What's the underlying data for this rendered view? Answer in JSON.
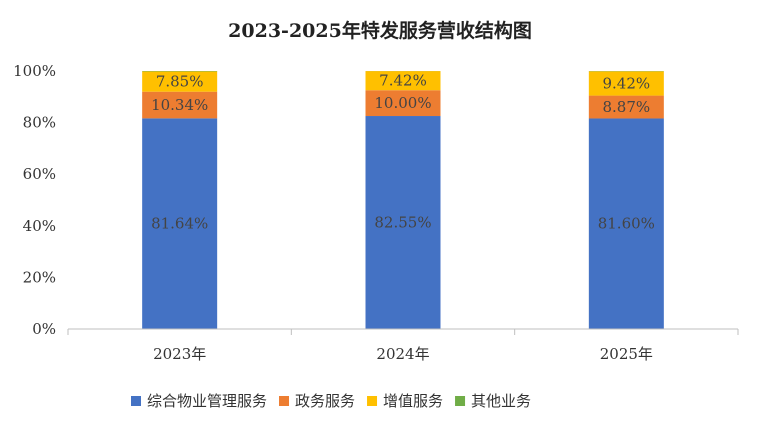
{
  "chart_data": {
    "type": "bar",
    "stacked": true,
    "title": "2023-2025年特发服务营收结构图",
    "categories": [
      "2023年",
      "2024年",
      "2025年"
    ],
    "series": [
      {
        "name": "综合物业管理服务",
        "color": "#4472C4",
        "values": [
          81.64,
          82.55,
          81.6
        ],
        "labels": [
          "81.64%",
          "82.55%",
          "81.60%"
        ]
      },
      {
        "name": "政务服务",
        "color": "#ED7D31",
        "values": [
          10.34,
          10.0,
          8.87
        ],
        "labels": [
          "10.34%",
          "10.00%",
          "8.87%"
        ]
      },
      {
        "name": "增值服务",
        "color": "#FFC000",
        "values": [
          7.85,
          7.42,
          9.42
        ],
        "labels": [
          "7.85%",
          "7.42%",
          "9.42%"
        ]
      },
      {
        "name": "其他业务",
        "color": "#70AD47",
        "values": [
          0.17,
          0.03,
          0.11
        ],
        "labels": [
          "",
          "",
          ""
        ]
      }
    ],
    "ylim": [
      0,
      100
    ],
    "yticks": [
      0,
      20,
      40,
      60,
      80,
      100
    ],
    "ytick_labels": [
      "0%",
      "20%",
      "40%",
      "60%",
      "80%",
      "100%"
    ],
    "grid": false,
    "legend": "bottom",
    "xlabel": "",
    "ylabel": ""
  }
}
